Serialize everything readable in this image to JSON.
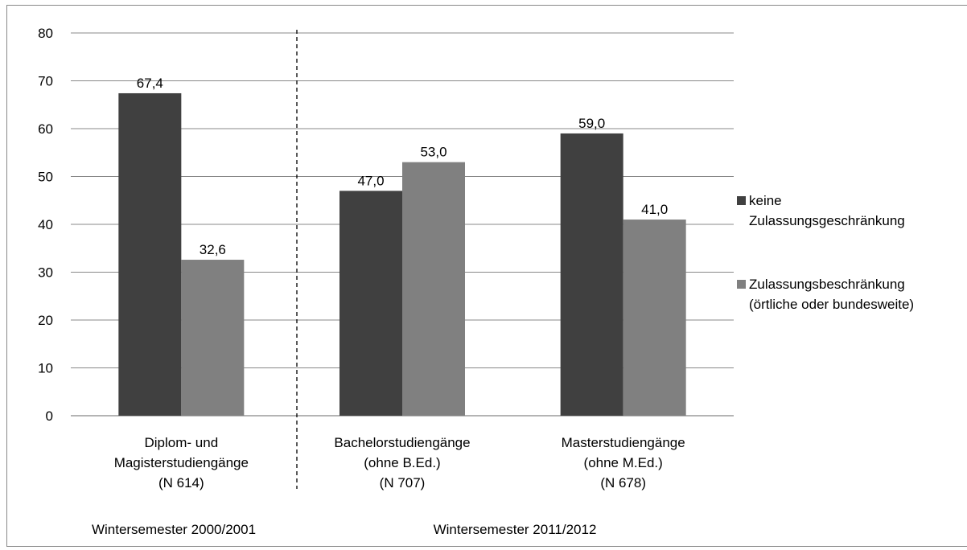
{
  "chart_data": {
    "type": "bar",
    "categories": [
      [
        "Diplom- und",
        "Magisterstudiengänge",
        "(N 614)"
      ],
      [
        "Bachelorstudiengänge",
        "(ohne B.Ed.)",
        "(N 707)"
      ],
      [
        "Masterstudiengänge",
        "(ohne M.Ed.)",
        "(N 678)"
      ]
    ],
    "series": [
      {
        "name": [
          "keine",
          "Zulassungsgeschränkung"
        ],
        "values": [
          67.4,
          47.0,
          59.0
        ],
        "labels": [
          "67,4",
          "47,0",
          "59,0"
        ],
        "color": "#404040"
      },
      {
        "name": [
          "Zulassungsbeschränkung",
          "(örtliche oder bundesweite)"
        ],
        "values": [
          32.6,
          53.0,
          41.0
        ],
        "labels": [
          "32,6",
          "53,0",
          "41,0"
        ],
        "color": "#808080"
      }
    ],
    "y_ticks": [
      "0",
      "10",
      "20",
      "30",
      "40",
      "50",
      "60",
      "70",
      "80"
    ],
    "ylim": [
      0,
      80
    ],
    "grid": true,
    "legend_position": "right",
    "group_labels": [
      "Wintersemester 2000/2001",
      "Wintersemester 2011/2012"
    ],
    "separator": "dashed line between first and second category"
  }
}
